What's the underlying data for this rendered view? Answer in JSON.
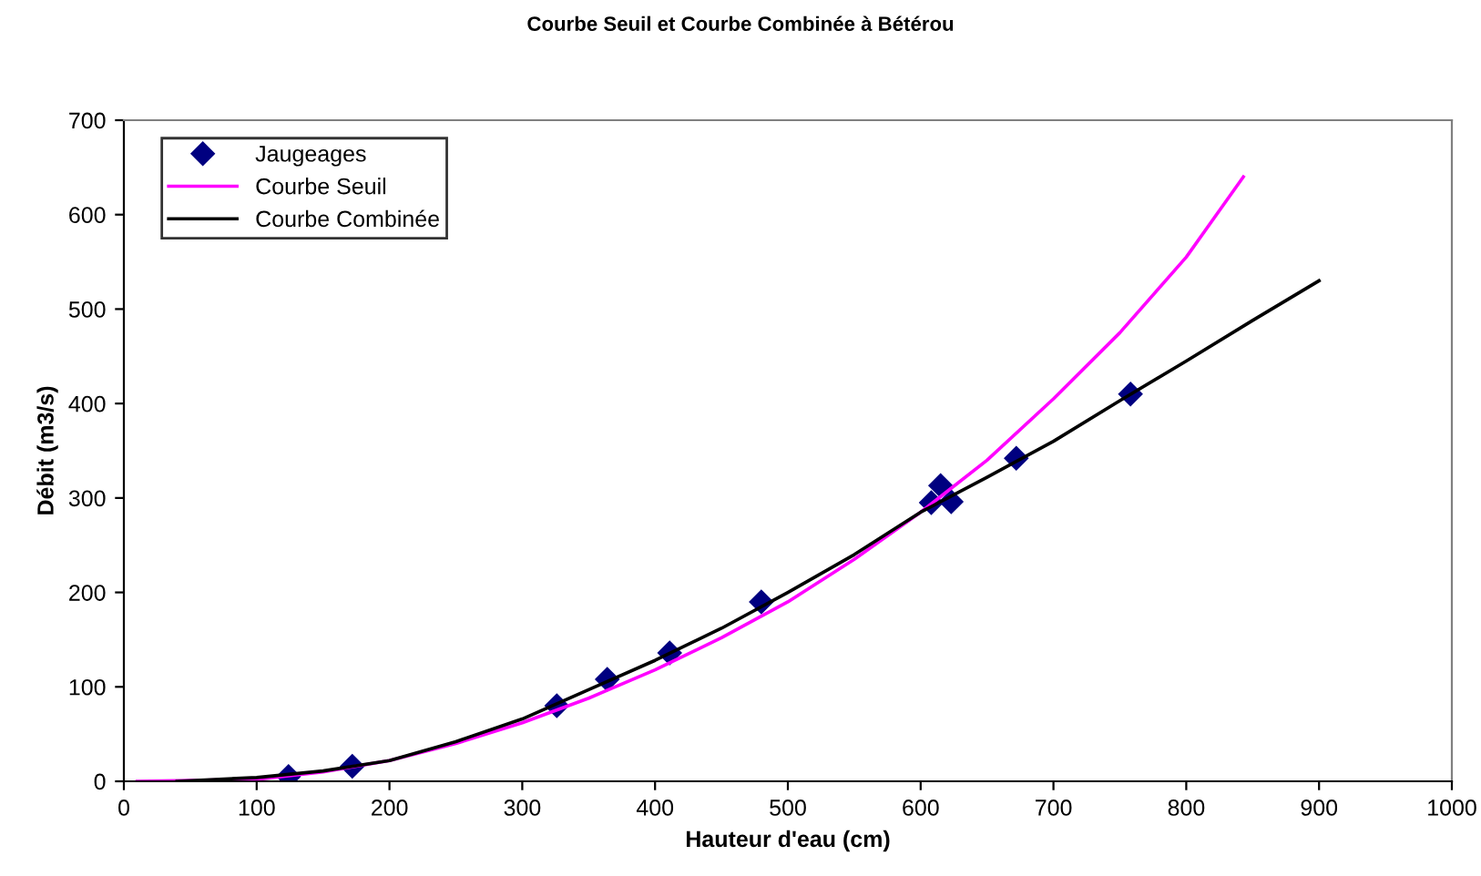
{
  "chart_data": {
    "type": "scatter",
    "title": "Courbe Seuil et Courbe Combinée à Bétérou",
    "xlabel": "Hauteur d'eau (cm)",
    "ylabel": "Débit (m3/s)",
    "xlim": [
      0,
      1000
    ],
    "xticks": [
      0,
      100,
      200,
      300,
      400,
      500,
      600,
      700,
      800,
      900,
      1000
    ],
    "ylim": [
      0,
      700
    ],
    "yticks": [
      0,
      100,
      200,
      300,
      400,
      500,
      600,
      700
    ],
    "grid": false,
    "legend": "top left",
    "series": [
      {
        "name": "Jaugeages",
        "marker": "diamond",
        "color": "#000080",
        "x": [
          124,
          172,
          326,
          364,
          411,
          480,
          608,
          615,
          623,
          672,
          758
        ],
        "values": [
          5,
          16,
          80,
          108,
          136,
          190,
          295,
          313,
          296,
          342,
          410
        ]
      },
      {
        "name": "Courbe Seuil",
        "type": "line",
        "color": "#ff00ff",
        "x": [
          10,
          100,
          150,
          200,
          250,
          300,
          350,
          400,
          450,
          500,
          550,
          600,
          650,
          700,
          750,
          800,
          843
        ],
        "values": [
          0,
          2,
          10,
          22,
          40,
          62,
          88,
          118,
          152,
          190,
          235,
          285,
          340,
          405,
          475,
          555,
          640
        ]
      },
      {
        "name": "Courbe Combinée",
        "type": "line",
        "color": "#000000",
        "x": [
          40,
          100,
          150,
          200,
          250,
          300,
          350,
          400,
          450,
          500,
          550,
          600,
          650,
          700,
          750,
          800,
          850,
          900
        ],
        "values": [
          0,
          4,
          11,
          22,
          42,
          66,
          97,
          128,
          162,
          200,
          240,
          285,
          322,
          360,
          403,
          445,
          488,
          530
        ]
      }
    ]
  }
}
